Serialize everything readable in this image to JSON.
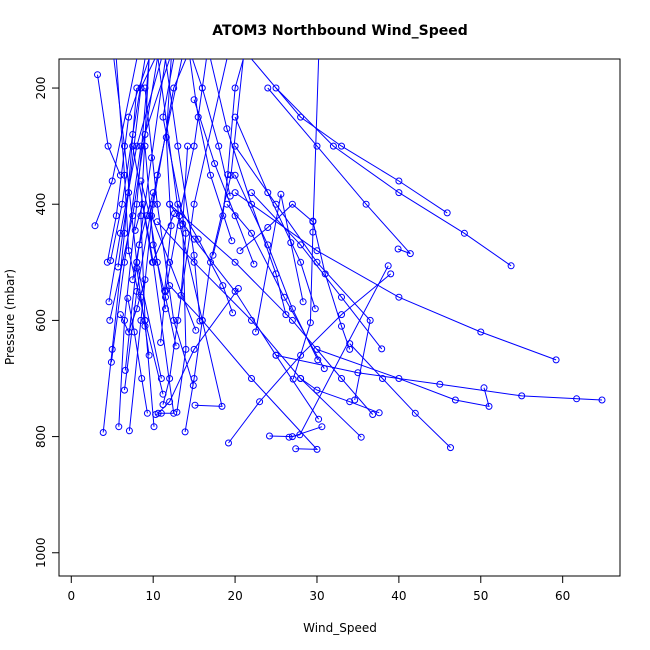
{
  "chart_data": {
    "type": "line",
    "title": "ATOM3 Northbound Wind_Speed",
    "xlabel": "Wind_Speed",
    "ylabel": "Pressure (mbar)",
    "xlim": [
      -1.5,
      67
    ],
    "ylim": [
      1040,
      150
    ],
    "y_reversed": true,
    "x_ticks": [
      0,
      10,
      20,
      30,
      40,
      50,
      60
    ],
    "y_ticks": [
      200,
      400,
      600,
      800,
      1000
    ],
    "series_color": "#0000ff",
    "marker": "open-circle",
    "series": [
      {
        "points": [
          [
            3.2,
            177
          ],
          [
            4.5,
            300
          ],
          [
            6.0,
            350
          ]
        ]
      },
      {
        "points": [
          [
            2.9,
            437
          ],
          [
            5.0,
            360
          ],
          [
            8.0,
            150
          ]
        ]
      },
      {
        "points": [
          [
            4.8,
            497
          ],
          [
            6.2,
            400
          ],
          [
            7.5,
            280
          ],
          [
            9.0,
            150
          ]
        ]
      },
      {
        "points": [
          [
            4.4,
            500
          ],
          [
            5.5,
            420
          ],
          [
            7.0,
            250
          ],
          [
            9.5,
            150
          ]
        ]
      },
      {
        "points": [
          [
            5.7,
            508
          ],
          [
            7.0,
            380
          ],
          [
            8.5,
            200
          ],
          [
            10.2,
            150
          ]
        ]
      },
      {
        "points": [
          [
            4.6,
            568
          ],
          [
            6.0,
            450
          ],
          [
            8.0,
            300
          ],
          [
            11.0,
            150
          ]
        ]
      },
      {
        "points": [
          [
            4.7,
            600
          ],
          [
            7.5,
            420
          ],
          [
            9.0,
            280
          ],
          [
            10.5,
            150
          ]
        ]
      },
      {
        "points": [
          [
            4.9,
            672
          ],
          [
            6.5,
            500
          ],
          [
            8.5,
            300
          ],
          [
            12.0,
            150
          ]
        ]
      },
      {
        "points": [
          [
            6.6,
            686
          ],
          [
            8.0,
            500
          ],
          [
            9.8,
            320
          ],
          [
            11.5,
            150
          ]
        ]
      },
      {
        "points": [
          [
            6.5,
            720
          ],
          [
            8.0,
            550
          ],
          [
            10.5,
            350
          ],
          [
            13.5,
            150
          ]
        ]
      },
      {
        "points": [
          [
            7.1,
            790
          ],
          [
            8.5,
            600
          ],
          [
            10.0,
            400
          ],
          [
            12.5,
            200
          ],
          [
            14.0,
            150
          ]
        ]
      },
      {
        "points": [
          [
            3.9,
            793
          ],
          [
            5.0,
            650
          ],
          [
            6.5,
            450
          ],
          [
            8.0,
            200
          ]
        ]
      },
      {
        "points": [
          [
            5.8,
            783
          ],
          [
            6.5,
            600
          ],
          [
            8.0,
            400
          ],
          [
            9.5,
            150
          ]
        ]
      },
      {
        "points": [
          [
            10.1,
            783
          ],
          [
            9.0,
            600
          ],
          [
            8.5,
            420
          ],
          [
            9.5,
            150
          ]
        ]
      },
      {
        "points": [
          [
            10.3,
            762
          ],
          [
            11.0,
            760
          ],
          [
            12.5,
            760
          ],
          [
            10.0,
            500
          ],
          [
            7.5,
            300
          ]
        ]
      },
      {
        "points": [
          [
            11.2,
            745
          ],
          [
            12.0,
            700
          ],
          [
            13.0,
            600
          ],
          [
            15.0,
            400
          ],
          [
            19.0,
            150
          ]
        ]
      },
      {
        "points": [
          [
            11.2,
            727
          ],
          [
            9.0,
            600
          ],
          [
            7.0,
            480
          ],
          [
            6.5,
            350
          ],
          [
            5.5,
            150
          ]
        ]
      },
      {
        "points": [
          [
            11.0,
            700
          ],
          [
            8.0,
            500
          ],
          [
            6.5,
            300
          ],
          [
            5.2,
            150
          ]
        ]
      },
      {
        "points": [
          [
            10.9,
            638
          ],
          [
            11.5,
            550
          ],
          [
            13.2,
            420
          ],
          [
            15.0,
            300
          ],
          [
            16.5,
            150
          ]
        ]
      },
      {
        "points": [
          [
            12.8,
            644
          ],
          [
            11.5,
            560
          ],
          [
            10.0,
            470
          ],
          [
            9.0,
            300
          ]
        ]
      },
      {
        "points": [
          [
            13.4,
            557
          ],
          [
            14.0,
            450
          ],
          [
            11.2,
            250
          ],
          [
            12.5,
            150
          ]
        ]
      },
      {
        "points": [
          [
            11.4,
            549
          ],
          [
            12.2,
            437
          ],
          [
            11.6,
            285
          ],
          [
            12.2,
            150
          ]
        ]
      },
      {
        "points": [
          [
            13.9,
            792
          ],
          [
            15.0,
            700
          ],
          [
            17.0,
            500
          ],
          [
            19.5,
            350
          ],
          [
            21.0,
            150
          ]
        ]
      },
      {
        "points": [
          [
            14.9,
            712
          ],
          [
            12.5,
            600
          ],
          [
            10.5,
            400
          ],
          [
            9.0,
            200
          ]
        ]
      },
      {
        "points": [
          [
            15.1,
            746
          ],
          [
            18.4,
            748
          ],
          [
            16.0,
            600
          ],
          [
            13.3,
            437
          ],
          [
            10.6,
            150
          ]
        ]
      },
      {
        "points": [
          [
            15.2,
            617
          ],
          [
            12.0,
            500
          ],
          [
            9.8,
            420
          ]
        ]
      },
      {
        "points": [
          [
            15.7,
            601
          ],
          [
            15.0,
            488
          ],
          [
            13.0,
            300
          ],
          [
            11.5,
            150
          ]
        ]
      },
      {
        "points": [
          [
            17.3,
            488
          ],
          [
            18.5,
            420
          ],
          [
            19.1,
            349
          ],
          [
            20.0,
            200
          ],
          [
            21.0,
            150
          ]
        ]
      },
      {
        "points": [
          [
            19.4,
            386
          ],
          [
            18.0,
            300
          ],
          [
            16.0,
            200
          ],
          [
            14.8,
            150
          ]
        ]
      },
      {
        "points": [
          [
            19.6,
            463
          ],
          [
            17.0,
            350
          ],
          [
            15.5,
            250
          ],
          [
            14.5,
            150
          ]
        ]
      },
      {
        "points": [
          [
            20.4,
            545
          ],
          [
            15.0,
            650
          ],
          [
            12.0,
            740
          ],
          [
            10.6,
            760
          ]
        ]
      },
      {
        "points": [
          [
            19.7,
            587
          ],
          [
            18.5,
            540
          ],
          [
            15.5,
            460
          ],
          [
            13.0,
            400
          ]
        ]
      },
      {
        "points": [
          [
            20.6,
            480
          ],
          [
            24.0,
            440
          ],
          [
            27.0,
            400
          ],
          [
            29.5,
            430
          ]
        ]
      },
      {
        "points": [
          [
            22.3,
            503
          ],
          [
            20.0,
            420
          ],
          [
            17.5,
            330
          ],
          [
            15.0,
            220
          ]
        ]
      },
      {
        "points": [
          [
            22.5,
            620
          ],
          [
            25.6,
            383
          ],
          [
            26.8,
            466
          ],
          [
            28.3,
            568
          ]
        ]
      },
      {
        "points": [
          [
            26.2,
            590
          ],
          [
            25.0,
            520
          ],
          [
            22.0,
            400
          ],
          [
            19.0,
            270
          ],
          [
            17.0,
            150
          ]
        ]
      },
      {
        "points": [
          [
            27.1,
            701
          ],
          [
            29.2,
            604
          ],
          [
            29.5,
            448
          ],
          [
            30.2,
            150
          ]
        ]
      },
      {
        "points": [
          [
            29.5,
            429
          ],
          [
            31.0,
            520
          ],
          [
            33.0,
            610
          ],
          [
            34.0,
            650
          ]
        ]
      },
      {
        "points": [
          [
            29.8,
            580
          ],
          [
            28.0,
            500
          ],
          [
            24.0,
            380
          ],
          [
            20.0,
            250
          ]
        ]
      },
      {
        "points": [
          [
            30.1,
            668
          ],
          [
            27.0,
            580
          ],
          [
            24.0,
            470
          ],
          [
            20.0,
            350
          ]
        ]
      },
      {
        "points": [
          [
            30.9,
            683
          ],
          [
            26.0,
            560
          ],
          [
            22.0,
            450
          ],
          [
            19.0,
            400
          ]
        ]
      },
      {
        "points": [
          [
            30.2,
            770
          ],
          [
            25.0,
            660
          ],
          [
            20.0,
            550
          ],
          [
            15.0,
            460
          ],
          [
            12.0,
            400
          ]
        ]
      },
      {
        "points": [
          [
            30.6,
            783
          ],
          [
            27.0,
            800
          ],
          [
            24.2,
            799
          ]
        ]
      },
      {
        "points": [
          [
            26.6,
            801
          ],
          [
            27.9,
            797
          ],
          [
            38.7,
            506
          ]
        ]
      },
      {
        "points": [
          [
            27.4,
            821
          ],
          [
            30.0,
            822
          ],
          [
            22.0,
            700
          ],
          [
            16.0,
            600
          ],
          [
            12.0,
            540
          ]
        ]
      },
      {
        "points": [
          [
            35.4,
            801
          ],
          [
            28.0,
            700
          ],
          [
            22.0,
            600
          ],
          [
            15.0,
            500
          ],
          [
            10.5,
            430
          ]
        ]
      },
      {
        "points": [
          [
            36.8,
            762
          ],
          [
            33.0,
            700
          ],
          [
            27.0,
            600
          ],
          [
            20.0,
            500
          ],
          [
            12.0,
            400
          ]
        ]
      },
      {
        "points": [
          [
            37.6,
            759
          ],
          [
            34.0,
            740
          ],
          [
            30.0,
            720
          ],
          [
            28.0,
            700
          ]
        ]
      },
      {
        "points": [
          [
            34.6,
            737
          ],
          [
            36.5,
            600
          ],
          [
            30.0,
            500
          ],
          [
            25.0,
            400
          ],
          [
            20.0,
            300
          ]
        ]
      },
      {
        "points": [
          [
            37.9,
            649
          ],
          [
            33.0,
            560
          ],
          [
            28.0,
            470
          ],
          [
            22.0,
            380
          ]
        ]
      },
      {
        "points": [
          [
            39.9,
            477
          ],
          [
            41.4,
            485
          ],
          [
            36.0,
            400
          ],
          [
            30.0,
            300
          ],
          [
            24.0,
            200
          ]
        ]
      },
      {
        "points": [
          [
            46.3,
            819
          ],
          [
            42.0,
            760
          ],
          [
            38.0,
            700
          ],
          [
            34.0,
            640
          ]
        ]
      },
      {
        "points": [
          [
            45.9,
            415
          ],
          [
            40.0,
            360
          ],
          [
            33.0,
            300
          ],
          [
            28.0,
            250
          ],
          [
            22.0,
            150
          ]
        ]
      },
      {
        "points": [
          [
            50.4,
            716
          ],
          [
            51.0,
            748
          ],
          [
            46.9,
            737
          ],
          [
            40.0,
            700
          ],
          [
            30.0,
            650
          ]
        ]
      },
      {
        "points": [
          [
            53.7,
            506
          ],
          [
            48.0,
            450
          ],
          [
            40.0,
            380
          ],
          [
            32.0,
            300
          ],
          [
            25.0,
            200
          ]
        ]
      },
      {
        "points": [
          [
            59.2,
            668
          ],
          [
            50.0,
            620
          ],
          [
            40.0,
            560
          ],
          [
            30.0,
            480
          ],
          [
            20.0,
            380
          ]
        ]
      },
      {
        "points": [
          [
            61.7,
            735
          ],
          [
            64.8,
            737
          ],
          [
            55.0,
            730
          ],
          [
            45.0,
            710
          ],
          [
            35.0,
            690
          ],
          [
            25.0,
            660
          ]
        ]
      },
      {
        "points": [
          [
            8.5,
            360
          ],
          [
            9.6,
            420
          ],
          [
            10.5,
            500
          ],
          [
            11.5,
            580
          ]
        ]
      },
      {
        "points": [
          [
            8.0,
            510
          ],
          [
            8.5,
            560
          ],
          [
            9.0,
            610
          ],
          [
            9.5,
            660
          ]
        ]
      },
      {
        "points": [
          [
            7.5,
            530
          ],
          [
            8.3,
            470
          ],
          [
            9.2,
            420
          ],
          [
            10.0,
            380
          ]
        ]
      },
      {
        "points": [
          [
            6.0,
            590
          ],
          [
            7.0,
            620
          ],
          [
            8.0,
            580
          ],
          [
            9.0,
            530
          ]
        ]
      },
      {
        "points": [
          [
            7.8,
            445
          ],
          [
            8.7,
            400
          ],
          [
            9.9,
            500
          ],
          [
            12.6,
            416
          ]
        ]
      },
      {
        "points": [
          [
            12.9,
            758
          ],
          [
            14.0,
            650
          ],
          [
            13.6,
            434
          ],
          [
            14.2,
            300
          ]
        ]
      },
      {
        "points": [
          [
            6.9,
            562
          ],
          [
            7.7,
            620
          ],
          [
            8.6,
            700
          ],
          [
            9.3,
            760
          ]
        ]
      },
      {
        "points": [
          [
            19.2,
            811
          ],
          [
            23.0,
            740
          ],
          [
            28.0,
            660
          ],
          [
            33.0,
            590
          ],
          [
            39.0,
            520
          ]
        ]
      }
    ]
  }
}
